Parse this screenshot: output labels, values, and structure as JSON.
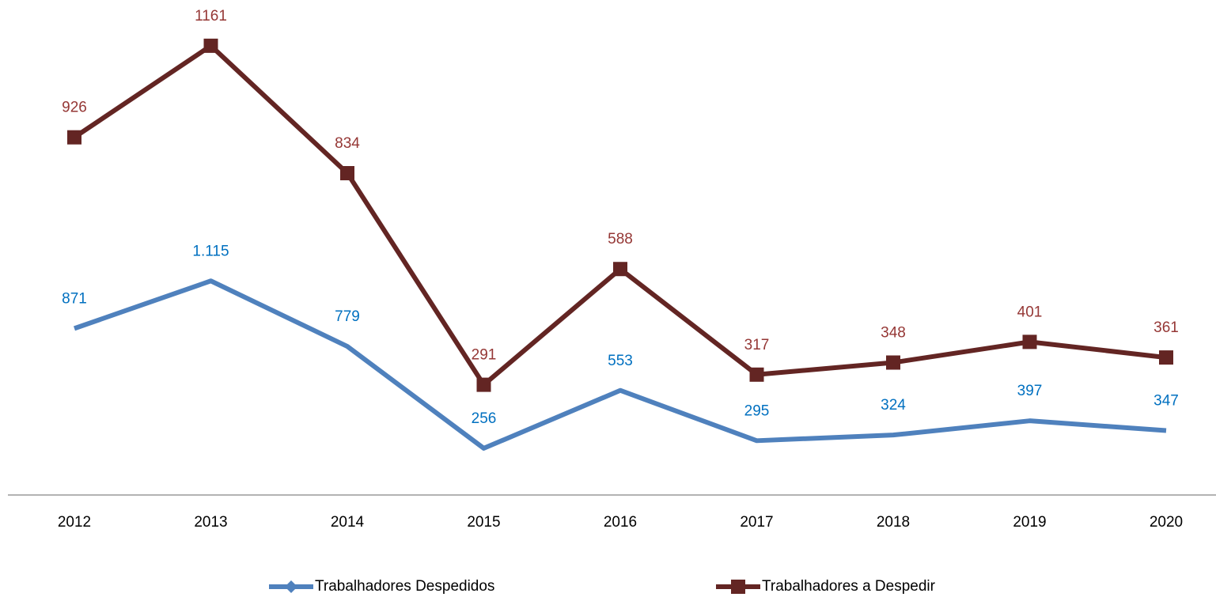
{
  "chart_data": {
    "type": "line",
    "categories": [
      "2012",
      "2013",
      "2014",
      "2015",
      "2016",
      "2017",
      "2018",
      "2019",
      "2020"
    ],
    "series": [
      {
        "name": "Trabalhadores Despedidos",
        "color": "#4f81bd",
        "label_color": "#0070c0",
        "axis": "y2",
        "marker": "none",
        "legend_marker": "diamond",
        "values": [
          871,
          1115,
          779,
          256,
          553,
          295,
          324,
          397,
          347
        ],
        "value_labels": [
          "871",
          "1.115",
          "779",
          "256",
          "553",
          "295",
          "324",
          "397",
          "347"
        ]
      },
      {
        "name": "Trabalhadores a Despedir",
        "color": "#632523",
        "label_color": "#953735",
        "marker": "square",
        "legend_marker": "square",
        "values": [
          926,
          1161,
          834,
          291,
          588,
          317,
          348,
          401,
          361
        ]
      }
    ],
    "ylim": [
      0,
      1250
    ],
    "y2lim": [
      0,
      2500
    ],
    "grid": false,
    "legend": "bottom"
  }
}
